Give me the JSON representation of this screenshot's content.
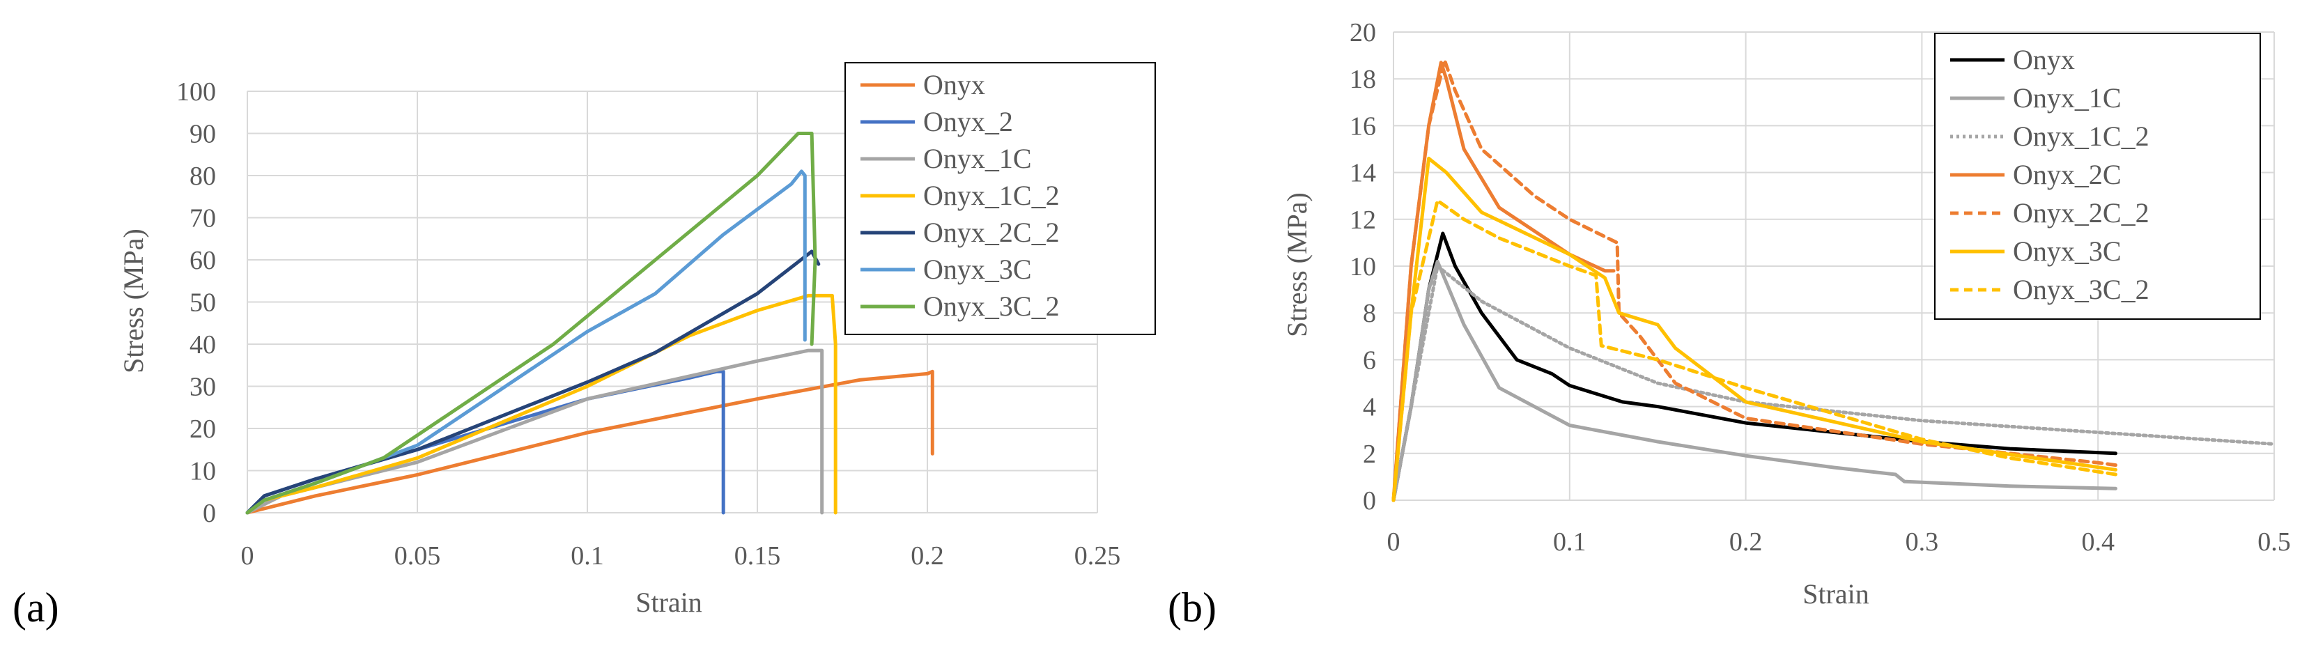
{
  "figure": {
    "panel_a_label": "(a)",
    "panel_b_label": "(b)"
  },
  "chart_data": [
    {
      "id": "a",
      "type": "line",
      "title": "",
      "xlabel": "Strain",
      "ylabel": "Stress (MPa)",
      "xlim": [
        0,
        0.25
      ],
      "ylim": [
        0,
        100
      ],
      "xticks": [
        0,
        0.05,
        0.1,
        0.15,
        0.2,
        0.25
      ],
      "xtick_labels": [
        "0",
        "0.05",
        "0.1",
        "0.15",
        "0.2",
        "0.25"
      ],
      "yticks": [
        0,
        10,
        20,
        30,
        40,
        50,
        60,
        70,
        80,
        90,
        100
      ],
      "ytick_labels": [
        "0",
        "10",
        "20",
        "30",
        "40",
        "50",
        "60",
        "70",
        "80",
        "90",
        "100"
      ],
      "legend_position": "top-right",
      "series": [
        {
          "name": "Onyx",
          "color": "#ED7D31",
          "dash": "solid",
          "points": [
            [
              0,
              0
            ],
            [
              0.02,
              4
            ],
            [
              0.05,
              9
            ],
            [
              0.1,
              19
            ],
            [
              0.15,
              27
            ],
            [
              0.18,
              31.5
            ],
            [
              0.2,
              33
            ],
            [
              0.2015,
              33.5
            ],
            [
              0.2015,
              14
            ]
          ]
        },
        {
          "name": "Onyx_2",
          "color": "#4472C4",
          "dash": "solid",
          "points": [
            [
              0,
              0
            ],
            [
              0.005,
              4
            ],
            [
              0.02,
              8
            ],
            [
              0.05,
              15
            ],
            [
              0.1,
              27
            ],
            [
              0.13,
              32
            ],
            [
              0.138,
              33.5
            ],
            [
              0.14,
              33.5
            ],
            [
              0.14,
              0
            ]
          ]
        },
        {
          "name": "Onyx_1C",
          "color": "#A5A5A5",
          "dash": "solid",
          "points": [
            [
              0,
              0
            ],
            [
              0.01,
              4
            ],
            [
              0.05,
              12
            ],
            [
              0.1,
              27
            ],
            [
              0.15,
              36
            ],
            [
              0.165,
              38.5
            ],
            [
              0.169,
              38.5
            ],
            [
              0.169,
              0
            ]
          ]
        },
        {
          "name": "Onyx_1C_2",
          "color": "#FFC000",
          "dash": "solid",
          "points": [
            [
              0,
              0
            ],
            [
              0.005,
              3
            ],
            [
              0.02,
              6
            ],
            [
              0.05,
              13
            ],
            [
              0.1,
              30
            ],
            [
              0.13,
              42
            ],
            [
              0.15,
              48
            ],
            [
              0.165,
              51.5
            ],
            [
              0.172,
              51.5
            ],
            [
              0.173,
              40
            ],
            [
              0.173,
              0
            ]
          ]
        },
        {
          "name": "Onyx_2C_2",
          "color": "#264478",
          "dash": "solid",
          "points": [
            [
              0,
              0
            ],
            [
              0.005,
              4
            ],
            [
              0.02,
              8
            ],
            [
              0.05,
              15
            ],
            [
              0.1,
              31
            ],
            [
              0.12,
              38
            ],
            [
              0.15,
              52
            ],
            [
              0.166,
              62
            ],
            [
              0.168,
              59
            ]
          ]
        },
        {
          "name": "Onyx_3C",
          "color": "#5B9BD5",
          "dash": "solid",
          "points": [
            [
              0,
              0
            ],
            [
              0.005,
              3
            ],
            [
              0.02,
              7
            ],
            [
              0.05,
              16
            ],
            [
              0.1,
              43
            ],
            [
              0.12,
              52
            ],
            [
              0.14,
              66
            ],
            [
              0.16,
              78
            ],
            [
              0.163,
              81
            ],
            [
              0.164,
              80
            ],
            [
              0.164,
              41
            ]
          ]
        },
        {
          "name": "Onyx_3C_2",
          "color": "#70AD47",
          "dash": "solid",
          "points": [
            [
              0,
              0
            ],
            [
              0.005,
              3
            ],
            [
              0.02,
              7
            ],
            [
              0.04,
              13
            ],
            [
              0.09,
              40
            ],
            [
              0.12,
              60
            ],
            [
              0.15,
              80
            ],
            [
              0.162,
              90
            ],
            [
              0.166,
              90
            ],
            [
              0.167,
              60
            ],
            [
              0.166,
              40
            ]
          ]
        }
      ]
    },
    {
      "id": "b",
      "type": "line",
      "title": "",
      "xlabel": "Strain",
      "ylabel": "Stress (MPa)",
      "xlim": [
        0,
        0.5
      ],
      "ylim": [
        0,
        20
      ],
      "xticks": [
        0,
        0.1,
        0.2,
        0.3,
        0.4,
        0.5
      ],
      "xtick_labels": [
        "0",
        "0.1",
        "0.2",
        "0.3",
        "0.4",
        "0.5"
      ],
      "yticks": [
        0,
        2,
        4,
        6,
        8,
        10,
        12,
        14,
        16,
        18,
        20
      ],
      "ytick_labels": [
        "0",
        "2",
        "4",
        "6",
        "8",
        "10",
        "12",
        "14",
        "16",
        "18",
        "20"
      ],
      "legend_position": "top-right",
      "series": [
        {
          "name": "Onyx",
          "color": "#000000",
          "dash": "solid",
          "points": [
            [
              0,
              0
            ],
            [
              0.01,
              4
            ],
            [
              0.02,
              9
            ],
            [
              0.028,
              11.4
            ],
            [
              0.035,
              10
            ],
            [
              0.05,
              8
            ],
            [
              0.07,
              6
            ],
            [
              0.09,
              5.4
            ],
            [
              0.1,
              4.9
            ],
            [
              0.13,
              4.2
            ],
            [
              0.15,
              4
            ],
            [
              0.2,
              3.3
            ],
            [
              0.3,
              2.5
            ],
            [
              0.35,
              2.2
            ],
            [
              0.41,
              2
            ]
          ]
        },
        {
          "name": "Onyx_1C",
          "color": "#A5A5A5",
          "dash": "solid",
          "points": [
            [
              0,
              0
            ],
            [
              0.01,
              4
            ],
            [
              0.02,
              9
            ],
            [
              0.025,
              10.2
            ],
            [
              0.04,
              7.5
            ],
            [
              0.06,
              4.8
            ],
            [
              0.1,
              3.2
            ],
            [
              0.15,
              2.5
            ],
            [
              0.2,
              1.9
            ],
            [
              0.25,
              1.4
            ],
            [
              0.285,
              1.1
            ],
            [
              0.29,
              0.8
            ],
            [
              0.35,
              0.6
            ],
            [
              0.41,
              0.5
            ]
          ]
        },
        {
          "name": "Onyx_1C_2",
          "color": "#A5A5A5",
          "dash": "dotted",
          "points": [
            [
              0,
              0
            ],
            [
              0.01,
              4
            ],
            [
              0.025,
              10
            ],
            [
              0.05,
              8.5
            ],
            [
              0.1,
              6.5
            ],
            [
              0.15,
              5
            ],
            [
              0.2,
              4.2
            ],
            [
              0.3,
              3.4
            ],
            [
              0.4,
              2.9
            ],
            [
              0.5,
              2.4
            ]
          ]
        },
        {
          "name": "Onyx_2C",
          "color": "#ED7D31",
          "dash": "solid",
          "points": [
            [
              0,
              0
            ],
            [
              0.01,
              10
            ],
            [
              0.02,
              16
            ],
            [
              0.027,
              18.7
            ],
            [
              0.03,
              18
            ],
            [
              0.04,
              15
            ],
            [
              0.06,
              12.5
            ],
            [
              0.08,
              11.5
            ],
            [
              0.1,
              10.5
            ],
            [
              0.12,
              9.8
            ],
            [
              0.125,
              9.8
            ]
          ]
        },
        {
          "name": "Onyx_2C_2",
          "color": "#ED7D31",
          "dash": "dashed",
          "points": [
            [
              0,
              0
            ],
            [
              0.01,
              10
            ],
            [
              0.02,
              16
            ],
            [
              0.029,
              18.8
            ],
            [
              0.035,
              17.5
            ],
            [
              0.05,
              15
            ],
            [
              0.08,
              13
            ],
            [
              0.1,
              12
            ],
            [
              0.127,
              11
            ],
            [
              0.128,
              8
            ],
            [
              0.14,
              7
            ],
            [
              0.16,
              5
            ],
            [
              0.2,
              3.5
            ],
            [
              0.3,
              2.4
            ],
            [
              0.4,
              1.6
            ],
            [
              0.41,
              1.5
            ]
          ]
        },
        {
          "name": "Onyx_3C",
          "color": "#FFC000",
          "dash": "solid",
          "points": [
            [
              0,
              0
            ],
            [
              0.01,
              8
            ],
            [
              0.02,
              14.6
            ],
            [
              0.03,
              14
            ],
            [
              0.05,
              12.3
            ],
            [
              0.1,
              10.5
            ],
            [
              0.12,
              9.5
            ],
            [
              0.128,
              8
            ],
            [
              0.15,
              7.5
            ],
            [
              0.16,
              6.5
            ],
            [
              0.2,
              4.2
            ],
            [
              0.3,
              2.5
            ],
            [
              0.41,
              1.3
            ]
          ]
        },
        {
          "name": "Onyx_3C_2",
          "color": "#FFC000",
          "dash": "dashed",
          "points": [
            [
              0,
              0
            ],
            [
              0.01,
              8
            ],
            [
              0.025,
              12.8
            ],
            [
              0.04,
              12
            ],
            [
              0.06,
              11.2
            ],
            [
              0.1,
              10
            ],
            [
              0.115,
              9.6
            ],
            [
              0.118,
              6.6
            ],
            [
              0.15,
              6
            ],
            [
              0.2,
              4.8
            ],
            [
              0.3,
              2.6
            ],
            [
              0.35,
              1.8
            ],
            [
              0.41,
              1.1
            ]
          ]
        }
      ]
    }
  ]
}
